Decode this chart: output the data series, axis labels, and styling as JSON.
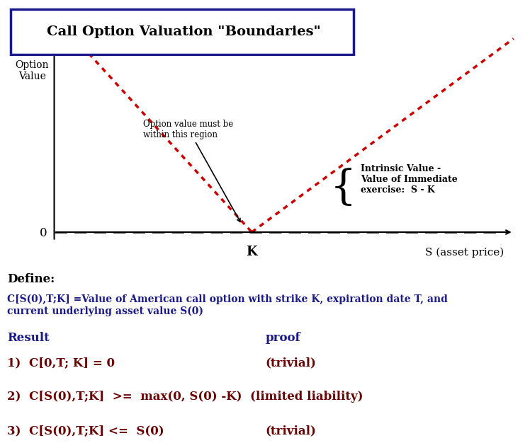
{
  "title": "Call Option Valuation \"Boundaries\"",
  "title_box_color": "#1a1a8c",
  "background_color": "#ffffff",
  "ylabel": "Option\nValue",
  "xlabel_k": "K",
  "xlabel_s": "S (asset price)",
  "zero_label": "0",
  "annotation_text": "Option value must be\nwithin this region",
  "intrinsic_text": "Intrinsic Value -\nValue of Immediate\nexercise:  S - K",
  "define_text": "Define:",
  "define_body": "C[S(0),T;K] =Value of American call option with strike K, expiration date T, and\ncurrent underlying asset value S(0)",
  "result_label": "Result",
  "proof_label": "proof",
  "result1": "1)  C[0,T; K] = 0",
  "proof1": "(trivial)",
  "result2": "2)  C[S(0),T;K]  >=  max(0, S(0) -K)  (limited liability)",
  "result3": "3)  C[S(0),T;K] <=  S(0)",
  "proof3": "(trivial)",
  "text_color_dark": "#1a1a8c",
  "text_color_result": "#6b0000",
  "text_color_black": "#000000",
  "line_color_red": "#cc0000",
  "line_color_axis": "#000000",
  "dashed_color": "#000000"
}
